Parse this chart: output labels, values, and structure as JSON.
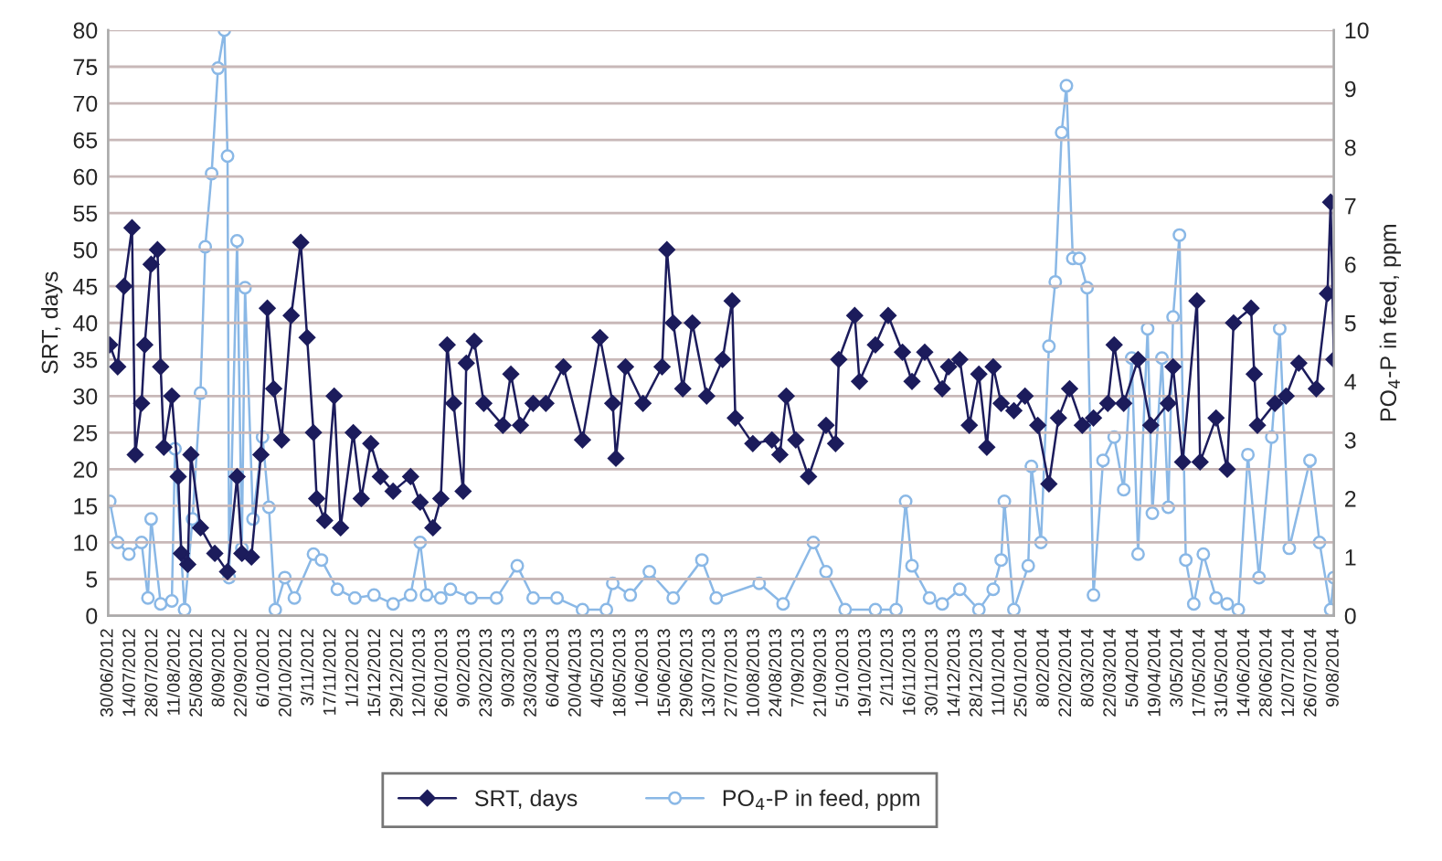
{
  "chart_data": {
    "type": "line",
    "ylabel": "SRT, days",
    "y2label": "PO$_{4}$-P in feed, ppm",
    "xlim": [
      "2012-06-30",
      "2014-08-09"
    ],
    "xticks": [
      {
        "value": "2012-06-30",
        "label": "30/06/2012"
      },
      {
        "value": "2012-07-14",
        "label": "14/07/2012"
      },
      {
        "value": "2012-07-28",
        "label": "28/07/2012"
      },
      {
        "value": "2012-08-11",
        "label": "11/08/2012"
      },
      {
        "value": "2012-08-25",
        "label": "25/08/2012"
      },
      {
        "value": "2012-09-08",
        "label": "8/09/2012"
      },
      {
        "value": "2012-09-22",
        "label": "22/09/2012"
      },
      {
        "value": "2012-10-06",
        "label": "6/10/2012"
      },
      {
        "value": "2012-10-20",
        "label": "20/10/2012"
      },
      {
        "value": "2012-11-03",
        "label": "3/11/2012"
      },
      {
        "value": "2012-11-17",
        "label": "17/11/2012"
      },
      {
        "value": "2012-12-01",
        "label": "1/12/2012"
      },
      {
        "value": "2012-12-15",
        "label": "15/12/2012"
      },
      {
        "value": "2012-12-29",
        "label": "29/12/2012"
      },
      {
        "value": "2013-01-12",
        "label": "12/01/2013"
      },
      {
        "value": "2013-01-26",
        "label": "26/01/2013"
      },
      {
        "value": "2013-02-09",
        "label": "9/02/2013"
      },
      {
        "value": "2013-02-23",
        "label": "23/02/2013"
      },
      {
        "value": "2013-03-09",
        "label": "9/03/2013"
      },
      {
        "value": "2013-03-23",
        "label": "23/03/2013"
      },
      {
        "value": "2013-04-06",
        "label": "6/04/2013"
      },
      {
        "value": "2013-04-20",
        "label": "20/04/2013"
      },
      {
        "value": "2013-05-04",
        "label": "4/05/2013"
      },
      {
        "value": "2013-05-18",
        "label": "18/05/2013"
      },
      {
        "value": "2013-06-01",
        "label": "1/06/2013"
      },
      {
        "value": "2013-06-15",
        "label": "15/06/2013"
      },
      {
        "value": "2013-06-29",
        "label": "29/06/2013"
      },
      {
        "value": "2013-07-13",
        "label": "13/07/2013"
      },
      {
        "value": "2013-07-27",
        "label": "27/07/2013"
      },
      {
        "value": "2013-08-10",
        "label": "10/08/2013"
      },
      {
        "value": "2013-08-24",
        "label": "24/08/2013"
      },
      {
        "value": "2013-09-07",
        "label": "7/09/2013"
      },
      {
        "value": "2013-09-21",
        "label": "21/09/2013"
      },
      {
        "value": "2013-10-05",
        "label": "5/10/2013"
      },
      {
        "value": "2013-10-19",
        "label": "19/10/2013"
      },
      {
        "value": "2013-11-02",
        "label": "2/11/2013"
      },
      {
        "value": "2013-11-16",
        "label": "16/11/2013"
      },
      {
        "value": "2013-11-30",
        "label": "30/11/2013"
      },
      {
        "value": "2013-12-14",
        "label": "14/12/2013"
      },
      {
        "value": "2013-12-28",
        "label": "28/12/2013"
      },
      {
        "value": "2014-01-11",
        "label": "11/01/2014"
      },
      {
        "value": "2014-01-25",
        "label": "25/01/2014"
      },
      {
        "value": "2014-02-08",
        "label": "8/02/2014"
      },
      {
        "value": "2014-02-22",
        "label": "22/02/2014"
      },
      {
        "value": "2014-03-08",
        "label": "8/03/2014"
      },
      {
        "value": "2014-03-22",
        "label": "22/03/2014"
      },
      {
        "value": "2014-04-05",
        "label": "5/04/2014"
      },
      {
        "value": "2014-04-19",
        "label": "19/04/2014"
      },
      {
        "value": "2014-05-03",
        "label": "3/05/2014"
      },
      {
        "value": "2014-05-17",
        "label": "17/05/2014"
      },
      {
        "value": "2014-05-31",
        "label": "31/05/2014"
      },
      {
        "value": "2014-06-14",
        "label": "14/06/2014"
      },
      {
        "value": "2014-06-28",
        "label": "28/06/2014"
      },
      {
        "value": "2014-07-12",
        "label": "12/07/2014"
      },
      {
        "value": "2014-07-26",
        "label": "26/07/2014"
      },
      {
        "value": "2014-08-09",
        "label": "9/08/2014"
      }
    ],
    "ylim": [
      0,
      80
    ],
    "yticks": [
      0,
      5,
      10,
      15,
      20,
      25,
      30,
      35,
      40,
      45,
      50,
      55,
      60,
      65,
      70,
      75,
      80
    ],
    "y2lim": [
      0,
      10
    ],
    "y2ticks": [
      0,
      1,
      2,
      3,
      4,
      5,
      6,
      7,
      8,
      9,
      10
    ],
    "grid": "y",
    "legend": "bottom",
    "line_style": "solid",
    "series": [
      {
        "name": "SRT, days",
        "color": "#1c1c5c",
        "marker": "diamond",
        "x": [
          "2012-07-01",
          "2012-07-06",
          "2012-07-10",
          "2012-07-15",
          "2012-07-17",
          "2012-07-21",
          "2012-07-23",
          "2012-07-27",
          "2012-07-31",
          "2012-08-02",
          "2012-08-04",
          "2012-08-09",
          "2012-08-13",
          "2012-08-15",
          "2012-08-19",
          "2012-08-21",
          "2012-08-27",
          "2012-09-05",
          "2012-09-13",
          "2012-09-19",
          "2012-09-22",
          "2012-09-28",
          "2012-10-04",
          "2012-10-08",
          "2012-10-12",
          "2012-10-17",
          "2012-10-23",
          "2012-10-29",
          "2012-11-02",
          "2012-11-06",
          "2012-11-08",
          "2012-11-13",
          "2012-11-19",
          "2012-11-23",
          "2012-12-01",
          "2012-12-06",
          "2012-12-12",
          "2012-12-18",
          "2012-12-26",
          "2013-01-06",
          "2013-01-12",
          "2013-01-20",
          "2013-01-25",
          "2013-01-29",
          "2013-02-02",
          "2013-02-08",
          "2013-02-10",
          "2013-02-15",
          "2013-02-21",
          "2013-03-05",
          "2013-03-10",
          "2013-03-16",
          "2013-03-24",
          "2013-04-01",
          "2013-04-12",
          "2013-04-24",
          "2013-05-05",
          "2013-05-13",
          "2013-05-15",
          "2013-05-21",
          "2013-06-01",
          "2013-06-13",
          "2013-06-16",
          "2013-06-20",
          "2013-06-26",
          "2013-07-02",
          "2013-07-11",
          "2013-07-21",
          "2013-07-27",
          "2013-07-29",
          "2013-08-09",
          "2013-08-21",
          "2013-08-26",
          "2013-08-30",
          "2013-09-05",
          "2013-09-13",
          "2013-09-24",
          "2013-09-30",
          "2013-10-02",
          "2013-10-12",
          "2013-10-15",
          "2013-10-25",
          "2013-11-02",
          "2013-11-11",
          "2013-11-17",
          "2013-11-25",
          "2013-12-06",
          "2013-12-10",
          "2013-12-17",
          "2013-12-23",
          "2013-12-29",
          "2014-01-03",
          "2014-01-07",
          "2014-01-12",
          "2014-01-20",
          "2014-01-27",
          "2014-02-04",
          "2014-02-11",
          "2014-02-17",
          "2014-02-24",
          "2014-03-04",
          "2014-03-11",
          "2014-03-20",
          "2014-03-24",
          "2014-03-30",
          "2014-04-08",
          "2014-04-16",
          "2014-04-27",
          "2014-04-30",
          "2014-05-06",
          "2014-05-15",
          "2014-05-17",
          "2014-05-27",
          "2014-06-03",
          "2014-06-07",
          "2014-06-18",
          "2014-06-20",
          "2014-06-22",
          "2014-07-03",
          "2014-07-10",
          "2014-07-18",
          "2014-07-29",
          "2014-08-05",
          "2014-08-07",
          "2014-08-09"
        ],
        "values": [
          37,
          34,
          45,
          53,
          22,
          29,
          37,
          48,
          50,
          34,
          23,
          30,
          19,
          8.5,
          7,
          22,
          12,
          8.5,
          6,
          19,
          8.5,
          8,
          22,
          42,
          31,
          24,
          41,
          51,
          38,
          25,
          16,
          13,
          30,
          12,
          25,
          16,
          23.5,
          19,
          17,
          19,
          15.5,
          12,
          16,
          37,
          29,
          17,
          34.5,
          37.5,
          29,
          26,
          33,
          26,
          29,
          29,
          34,
          24,
          38,
          29,
          21.5,
          34,
          29,
          34,
          50,
          40,
          31,
          40,
          30,
          35,
          43,
          27,
          23.5,
          24,
          22,
          30,
          24,
          19,
          26,
          23.5,
          35,
          41,
          32,
          37,
          41,
          36,
          32,
          36,
          31,
          34,
          35,
          26,
          33,
          23,
          34,
          29,
          28,
          30,
          26,
          18,
          27,
          31,
          26,
          27,
          29,
          37,
          29,
          35,
          26,
          29,
          34,
          21,
          43,
          21,
          27,
          20,
          40,
          42,
          33,
          26,
          29,
          30,
          34.5,
          31,
          44,
          56.5,
          35
        ]
      },
      {
        "name": "PO$_{4}$-P in feed, ppm",
        "color": "#8ab8e6",
        "marker": "circle",
        "axis": "y2",
        "x": [
          "2012-07-01",
          "2012-07-06",
          "2012-07-13",
          "2012-07-21",
          "2012-07-25",
          "2012-07-27",
          "2012-08-02",
          "2012-08-09",
          "2012-08-11",
          "2012-08-17",
          "2012-08-22",
          "2012-08-27",
          "2012-08-30",
          "2012-09-03",
          "2012-09-07",
          "2012-09-11",
          "2012-09-13",
          "2012-09-14",
          "2012-09-19",
          "2012-09-22",
          "2012-09-24",
          "2012-09-29",
          "2012-10-05",
          "2012-10-09",
          "2012-10-13",
          "2012-10-19",
          "2012-10-25",
          "2012-11-06",
          "2012-11-11",
          "2012-11-21",
          "2012-12-02",
          "2012-12-14",
          "2012-12-26",
          "2013-01-06",
          "2013-01-12",
          "2013-01-16",
          "2013-01-25",
          "2013-01-31",
          "2013-02-13",
          "2013-03-01",
          "2013-03-14",
          "2013-03-24",
          "2013-04-08",
          "2013-04-24",
          "2013-05-09",
          "2013-05-13",
          "2013-05-24",
          "2013-06-05",
          "2013-06-20",
          "2013-07-08",
          "2013-07-17",
          "2013-08-13",
          "2013-08-28",
          "2013-09-16",
          "2013-09-24",
          "2013-10-06",
          "2013-10-25",
          "2013-11-07",
          "2013-11-13",
          "2013-11-17",
          "2013-11-28",
          "2013-12-06",
          "2013-12-17",
          "2013-12-29",
          "2014-01-07",
          "2014-01-12",
          "2014-01-14",
          "2014-01-20",
          "2014-01-29",
          "2014-01-31",
          "2014-02-06",
          "2014-02-11",
          "2014-02-15",
          "2014-02-19",
          "2014-02-22",
          "2014-02-26",
          "2014-03-02",
          "2014-03-07",
          "2014-03-11",
          "2014-03-17",
          "2014-03-24",
          "2014-03-30",
          "2014-04-04",
          "2014-04-08",
          "2014-04-14",
          "2014-04-17",
          "2014-04-23",
          "2014-04-27",
          "2014-04-30",
          "2014-05-04",
          "2014-05-08",
          "2014-05-13",
          "2014-05-19",
          "2014-05-27",
          "2014-06-03",
          "2014-06-10",
          "2014-06-16",
          "2014-06-23",
          "2014-07-01",
          "2014-07-06",
          "2014-07-12",
          "2014-07-25",
          "2014-07-31",
          "2014-08-07",
          "2014-08-09"
        ],
        "values": [
          1.95,
          1.25,
          1.05,
          1.25,
          0.3,
          1.65,
          0.2,
          0.25,
          2.85,
          0.1,
          1.65,
          3.8,
          6.3,
          7.55,
          9.35,
          10,
          7.85,
          0.65,
          6.4,
          1.15,
          5.6,
          1.65,
          3.05,
          1.85,
          0.1,
          0.65,
          0.3,
          1.05,
          0.95,
          0.45,
          0.3,
          0.35,
          0.2,
          0.35,
          1.25,
          0.35,
          0.3,
          0.45,
          0.3,
          0.3,
          0.85,
          0.3,
          0.3,
          0.1,
          0.1,
          0.55,
          0.35,
          0.75,
          0.3,
          0.95,
          0.3,
          0.55,
          0.2,
          1.25,
          0.75,
          0.1,
          0.1,
          0.1,
          1.95,
          0.85,
          0.3,
          0.2,
          0.45,
          0.1,
          0.45,
          0.95,
          1.95,
          0.1,
          0.85,
          2.55,
          1.25,
          4.6,
          5.7,
          8.25,
          9.05,
          6.1,
          6.1,
          5.6,
          0.35,
          2.65,
          3.05,
          2.15,
          4.4,
          1.05,
          4.9,
          1.75,
          4.4,
          1.85,
          5.1,
          6.5,
          0.95,
          0.2,
          1.05,
          0.3,
          0.2,
          0.1,
          2.75,
          0.65,
          3.05,
          4.9,
          1.15,
          2.65,
          1.25,
          0.1,
          0.65
        ]
      }
    ]
  }
}
